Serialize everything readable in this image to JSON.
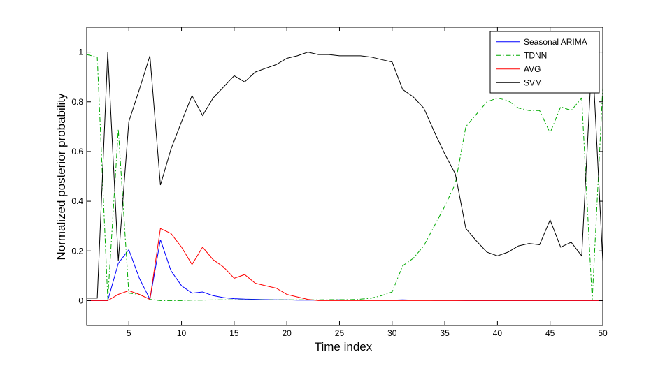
{
  "chart_data": {
    "type": "line",
    "xlabel": "Time index",
    "ylabel": "Normalized posterior probability",
    "xlim": [
      1,
      50
    ],
    "ylim": [
      -0.1,
      1.1
    ],
    "xticks": [
      5,
      10,
      15,
      20,
      25,
      30,
      35,
      40,
      45,
      50
    ],
    "yticks": [
      0,
      0.2,
      0.4,
      0.6,
      0.8,
      1
    ],
    "ytick_labels": [
      "0",
      "0.2",
      "0.4",
      "0.6",
      "0.8",
      "1"
    ],
    "grid": false,
    "legend_position": "top-right",
    "x": [
      1,
      2,
      3,
      4,
      5,
      6,
      7,
      8,
      9,
      10,
      11,
      12,
      13,
      14,
      15,
      16,
      17,
      18,
      19,
      20,
      21,
      22,
      23,
      24,
      25,
      26,
      27,
      28,
      29,
      30,
      31,
      32,
      33,
      34,
      35,
      36,
      37,
      38,
      39,
      40,
      41,
      42,
      43,
      44,
      45,
      46,
      47,
      48,
      49,
      50
    ],
    "series": [
      {
        "name": "Seasonal ARIMA",
        "color": "#0000ff",
        "dash": "solid",
        "values": [
          0,
          0,
          0,
          0.15,
          0.205,
          0.09,
          0.005,
          0.245,
          0.12,
          0.06,
          0.03,
          0.035,
          0.02,
          0.012,
          0.008,
          0.006,
          0.005,
          0.004,
          0.003,
          0.003,
          0.002,
          0.002,
          0.002,
          0.002,
          0.003,
          0.002,
          0.002,
          0.002,
          0.002,
          0.002,
          0.003,
          0.002,
          0.002,
          0.001,
          0.001,
          0.001,
          0,
          0,
          0,
          0,
          0,
          0,
          0,
          0,
          0,
          0,
          0,
          0,
          0,
          0
        ]
      },
      {
        "name": "TDNN",
        "color": "#00aa00",
        "dash": "dashdot",
        "values": [
          0.99,
          0.98,
          0.005,
          0.69,
          0.03,
          0.025,
          0.005,
          0,
          0,
          0,
          0.002,
          0.002,
          0.003,
          0.003,
          0.003,
          0.003,
          0.003,
          0.003,
          0.003,
          0.003,
          0.003,
          0.003,
          0.003,
          0.004,
          0.004,
          0.004,
          0.006,
          0.01,
          0.02,
          0.035,
          0.14,
          0.17,
          0.22,
          0.3,
          0.38,
          0.47,
          0.7,
          0.75,
          0.8,
          0.815,
          0.805,
          0.775,
          0.765,
          0.765,
          0.675,
          0.78,
          0.765,
          0.815,
          0,
          0.855
        ]
      },
      {
        "name": "AVG",
        "color": "#ff0000",
        "dash": "solid",
        "values": [
          0,
          0,
          0,
          0.025,
          0.04,
          0.025,
          0.005,
          0.29,
          0.27,
          0.215,
          0.145,
          0.215,
          0.165,
          0.135,
          0.09,
          0.105,
          0.07,
          0.06,
          0.05,
          0.025,
          0.015,
          0.005,
          0,
          0,
          0,
          0,
          0,
          0,
          0,
          0,
          0,
          0,
          0,
          0,
          0,
          0,
          0,
          0,
          0,
          0,
          0,
          0,
          0,
          0,
          0,
          0,
          0,
          0,
          0,
          0
        ]
      },
      {
        "name": "SVM",
        "color": "#000000",
        "dash": "solid",
        "values": [
          0.01,
          0.01,
          1,
          0.16,
          0.72,
          0.85,
          0.985,
          0.465,
          0.61,
          0.72,
          0.825,
          0.745,
          0.815,
          0.86,
          0.905,
          0.88,
          0.92,
          0.935,
          0.95,
          0.975,
          0.985,
          1,
          0.99,
          0.99,
          0.985,
          0.985,
          0.985,
          0.98,
          0.97,
          0.96,
          0.85,
          0.82,
          0.775,
          0.68,
          0.59,
          0.51,
          0.29,
          0.24,
          0.195,
          0.18,
          0.195,
          0.22,
          0.23,
          0.225,
          0.325,
          0.215,
          0.235,
          0.18,
          1,
          0.16
        ]
      }
    ]
  }
}
